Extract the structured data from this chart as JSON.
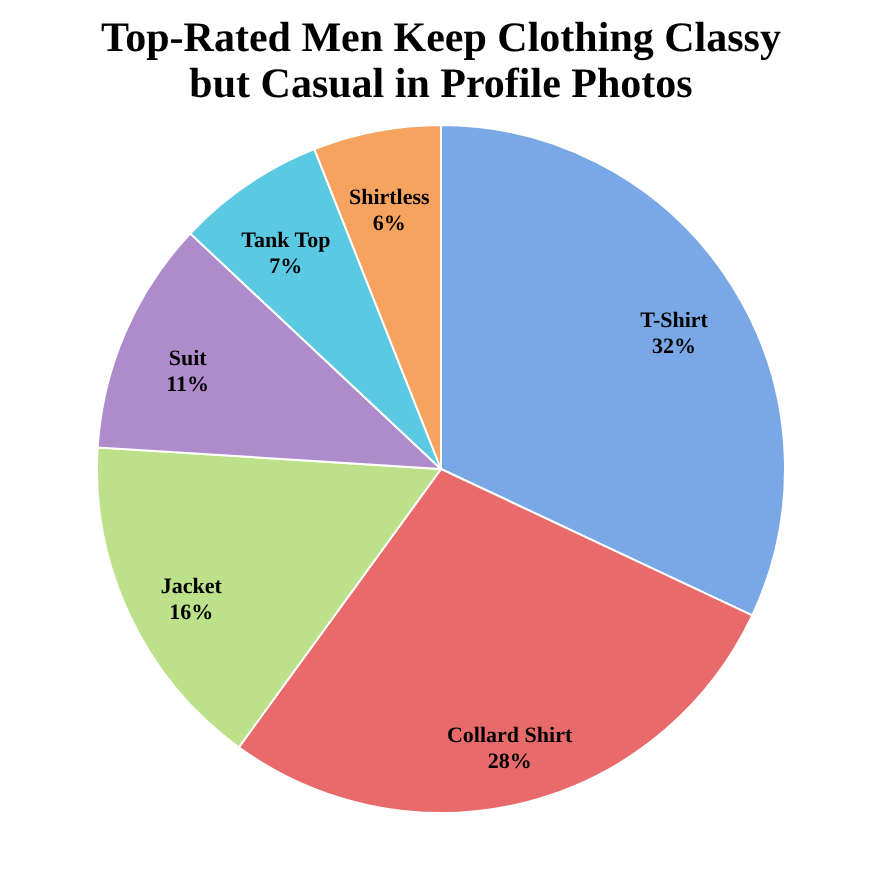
{
  "chart_data": {
    "type": "pie",
    "title": "Top-Rated Men Keep Clothing Classy but Casual in Profile Photos",
    "categories": [
      "T-Shirt",
      "Collard Shirt",
      "Jacket",
      "Suit",
      "Tank Top",
      "Shirtless"
    ],
    "values": [
      32,
      28,
      16,
      11,
      7,
      6
    ],
    "value_labels": [
      "32%",
      "28%",
      "16%",
      "11%",
      "7%",
      "6%"
    ],
    "colors": [
      "#7aa8e6",
      "#e86a6a",
      "#bde08a",
      "#ae8ccb",
      "#5cc9e3",
      "#f5a35f"
    ]
  }
}
